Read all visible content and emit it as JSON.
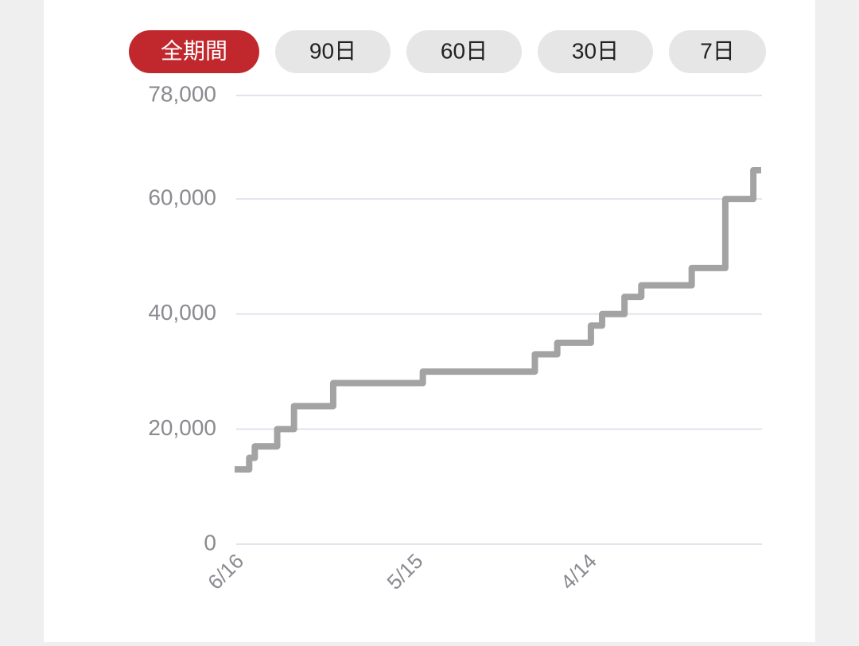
{
  "tabs": [
    {
      "label": "全期間",
      "active": true
    },
    {
      "label": "90日",
      "active": false
    },
    {
      "label": "60日",
      "active": false
    },
    {
      "label": "30日",
      "active": false
    },
    {
      "label": "7日",
      "active": false
    }
  ],
  "chart_data": {
    "type": "line",
    "step": true,
    "color": "#a3a3a3",
    "grid": true,
    "categories": [
      "6/16",
      null,
      null,
      null,
      null,
      null,
      null,
      null,
      null,
      null,
      null,
      null,
      null,
      null,
      null,
      null,
      null,
      null,
      null,
      null,
      null,
      null,
      null,
      null,
      null,
      null,
      null,
      null,
      null,
      null,
      null,
      null,
      "5/15",
      null,
      null,
      null,
      null,
      null,
      null,
      null,
      null,
      null,
      null,
      null,
      null,
      null,
      null,
      null,
      null,
      null,
      null,
      null,
      null,
      null,
      null,
      null,
      null,
      null,
      null,
      null,
      null,
      null,
      null,
      "4/14",
      null,
      null,
      null,
      null,
      null,
      null,
      null,
      null,
      null,
      null,
      null,
      null,
      null,
      null,
      null,
      null,
      null,
      null,
      null,
      null,
      null,
      null,
      null,
      null,
      null,
      null,
      null,
      null,
      null,
      null,
      null
    ],
    "values": [
      13000,
      13000,
      13000,
      15000,
      17000,
      17000,
      17000,
      17000,
      20000,
      20000,
      20000,
      24000,
      24000,
      24000,
      24000,
      24000,
      24000,
      24000,
      28000,
      28000,
      28000,
      28000,
      28000,
      28000,
      28000,
      28000,
      28000,
      28000,
      28000,
      28000,
      28000,
      28000,
      28000,
      28000,
      30000,
      30000,
      30000,
      30000,
      30000,
      30000,
      30000,
      30000,
      30000,
      30000,
      30000,
      30000,
      30000,
      30000,
      30000,
      30000,
      30000,
      30000,
      30000,
      30000,
      33000,
      33000,
      33000,
      33000,
      35000,
      35000,
      35000,
      35000,
      35000,
      35000,
      38000,
      38000,
      40000,
      40000,
      40000,
      40000,
      43000,
      43000,
      43000,
      45000,
      45000,
      45000,
      45000,
      45000,
      45000,
      45000,
      45000,
      45000,
      48000,
      48000,
      48000,
      48000,
      48000,
      48000,
      60000,
      60000,
      60000,
      60000,
      60000,
      65000,
      65000
    ],
    "ylim": [
      0,
      78000
    ],
    "yticks": [
      0,
      {
        "value": 20000,
        "label": "20,000"
      },
      {
        "value": 40000,
        "label": "40,000"
      },
      {
        "value": 60000,
        "label": "60,000"
      },
      {
        "value": 78000,
        "label": "78,000"
      }
    ]
  }
}
